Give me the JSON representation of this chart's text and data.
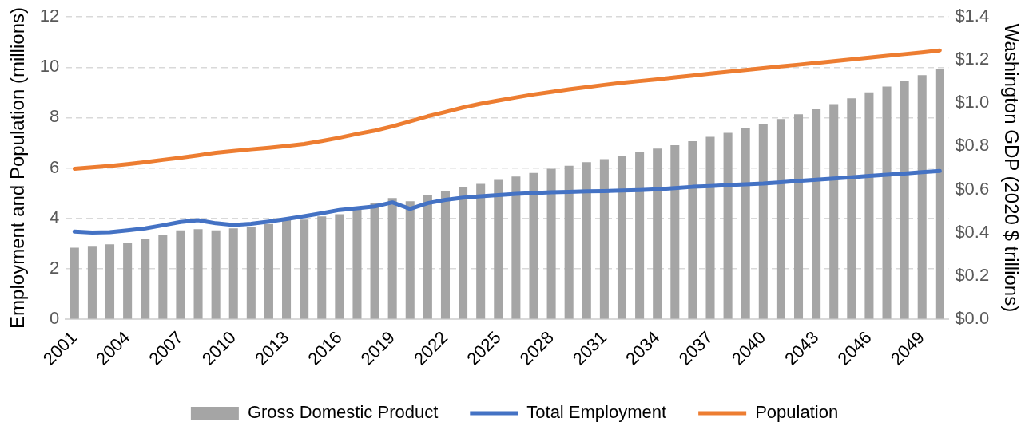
{
  "chart_data": {
    "type": "bar",
    "categories": [
      "2001",
      null,
      null,
      "2004",
      null,
      null,
      "2007",
      null,
      null,
      "2010",
      null,
      null,
      "2013",
      null,
      null,
      "2016",
      null,
      null,
      "2019",
      null,
      null,
      "2022",
      null,
      null,
      "2025",
      null,
      null,
      "2028",
      null,
      null,
      "2031",
      null,
      null,
      "2034",
      null,
      null,
      "2037",
      null,
      null,
      "2040",
      null,
      null,
      "2043",
      null,
      null,
      "2046",
      null,
      null,
      "2049",
      null
    ],
    "series": [
      {
        "name": "Gross Domestic Product",
        "axis": "y2",
        "color": "#a5a5a5",
        "values": [
          0.33,
          0.338,
          0.346,
          0.35,
          0.373,
          0.39,
          0.41,
          0.416,
          0.41,
          0.42,
          0.425,
          0.44,
          0.46,
          0.46,
          0.475,
          0.485,
          0.51,
          0.537,
          0.56,
          0.545,
          0.575,
          0.593,
          0.61,
          0.626,
          0.644,
          0.66,
          0.677,
          0.696,
          0.71,
          0.727,
          0.741,
          0.756,
          0.774,
          0.79,
          0.805,
          0.824,
          0.844,
          0.863,
          0.883,
          0.904,
          0.926,
          0.949,
          0.972,
          0.996,
          1.023,
          1.05,
          1.077,
          1.104,
          1.13,
          1.159
        ]
      },
      {
        "name": "Total Employment",
        "type": "line",
        "color": "#4472c4",
        "values": [
          3.47,
          3.43,
          3.45,
          3.52,
          3.6,
          3.72,
          3.85,
          3.92,
          3.8,
          3.73,
          3.78,
          3.87,
          3.97,
          4.08,
          4.2,
          4.33,
          4.4,
          4.47,
          4.63,
          4.37,
          4.6,
          4.73,
          4.82,
          4.87,
          4.92,
          4.97,
          5.0,
          5.03,
          5.05,
          5.07,
          5.08,
          5.1,
          5.12,
          5.15,
          5.2,
          5.25,
          5.28,
          5.32,
          5.35,
          5.38,
          5.43,
          5.48,
          5.53,
          5.58,
          5.63,
          5.68,
          5.73,
          5.78,
          5.83,
          5.88
        ]
      },
      {
        "name": "Population",
        "type": "line",
        "color": "#ed7d31",
        "values": [
          5.97,
          6.02,
          6.08,
          6.15,
          6.23,
          6.32,
          6.4,
          6.5,
          6.6,
          6.67,
          6.74,
          6.8,
          6.87,
          6.95,
          7.07,
          7.2,
          7.35,
          7.48,
          7.65,
          7.85,
          8.05,
          8.22,
          8.4,
          8.55,
          8.68,
          8.8,
          8.92,
          9.02,
          9.12,
          9.21,
          9.3,
          9.38,
          9.45,
          9.52,
          9.6,
          9.67,
          9.75,
          9.82,
          9.89,
          9.96,
          10.03,
          10.1,
          10.17,
          10.24,
          10.31,
          10.38,
          10.45,
          10.52,
          10.59,
          10.67
        ]
      }
    ],
    "ylabel": "Employment and Population (millions)",
    "y2label": "Washington GDP (2020 $ trillions)",
    "ylim": [
      0,
      12
    ],
    "yticks": [
      0,
      2,
      4,
      6,
      8,
      10,
      12
    ],
    "y2lim": [
      0,
      1.4
    ],
    "y2ticks": [
      {
        "value": 0,
        "label": "$0.0"
      },
      {
        "value": 0.2,
        "label": "$0.2"
      },
      {
        "value": 0.4,
        "label": "$0.4"
      },
      {
        "value": 0.6,
        "label": "$0.6"
      },
      {
        "value": 0.8,
        "label": "$0.8"
      },
      {
        "value": 1.0,
        "label": "$1.0"
      },
      {
        "value": 1.2,
        "label": "$1.2"
      },
      {
        "value": 1.4,
        "label": "$1.4"
      }
    ],
    "grid": "y",
    "legend": "bottom",
    "marker": "none",
    "line_style": "solid"
  }
}
